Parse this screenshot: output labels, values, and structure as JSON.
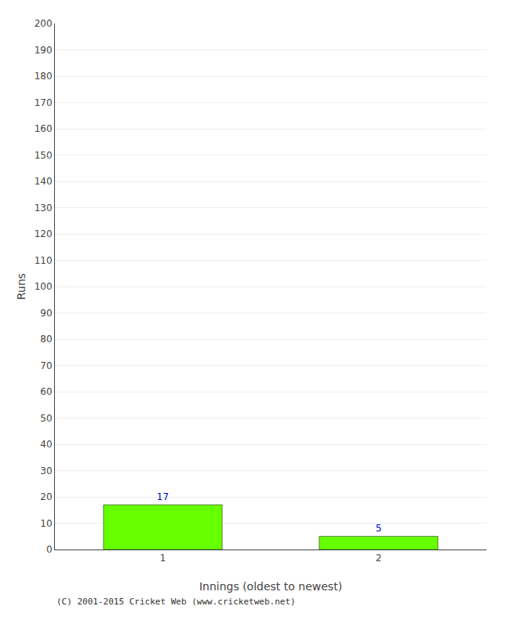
{
  "chart_data": {
    "type": "bar",
    "categories": [
      "1",
      "2"
    ],
    "values": [
      17,
      5
    ],
    "color": "#66ff00",
    "xlabel": "Innings (oldest to newest)",
    "ylabel": "Runs",
    "ylim": [
      0,
      200
    ],
    "yticks": [
      0,
      10,
      20,
      30,
      40,
      50,
      60,
      70,
      80,
      90,
      100,
      110,
      120,
      130,
      140,
      150,
      160,
      170,
      180,
      190,
      200
    ],
    "grid": true,
    "data_labels": true,
    "footnote": "(C) 2001-2015 Cricket Web (www.cricketweb.net)"
  }
}
